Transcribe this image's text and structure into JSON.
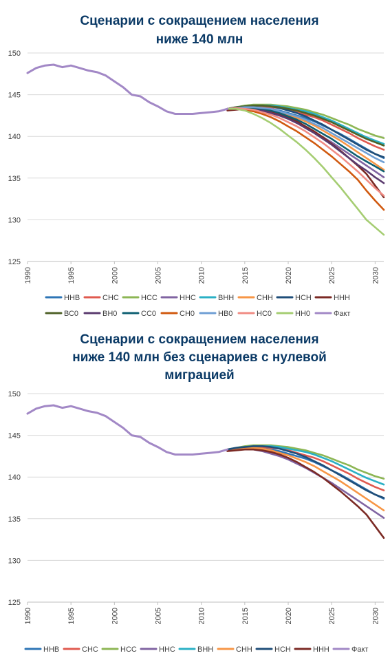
{
  "charts": [
    {
      "title_lines": [
        "Сценарии с сокращением населения",
        "ниже 140 млн"
      ],
      "type": "line",
      "xlim": [
        1990,
        2031
      ],
      "ylim": [
        125,
        150
      ],
      "y_ticks": [
        125,
        130,
        135,
        140,
        145,
        150
      ],
      "x_ticks": [
        1990,
        1995,
        2000,
        2005,
        2010,
        2015,
        2020,
        2025,
        2030
      ],
      "grid": "horizontal",
      "legend_position": "bottom",
      "series": [
        {
          "name": "ННВ",
          "color": "#2e75b6",
          "end": 137.4
        },
        {
          "name": "СНС",
          "color": "#e05a4f",
          "end": 138.4
        },
        {
          "name": "НСС",
          "color": "#8db654",
          "end": 139.8
        },
        {
          "name": "ННС",
          "color": "#8064a2",
          "end": 135.1
        },
        {
          "name": "ВНН",
          "color": "#2ab0c5",
          "end": 139.1
        },
        {
          "name": "СНН",
          "color": "#f79646",
          "end": 136.0
        },
        {
          "name": "НСН",
          "color": "#1f4e79",
          "end": 137.5
        },
        {
          "name": "ННН",
          "color": "#7b2a24",
          "end": 132.7
        },
        {
          "name": "ВС0",
          "color": "#4f6228",
          "end": 138.9
        },
        {
          "name": "ВН0",
          "color": "#5a3a6e",
          "end": 134.4
        },
        {
          "name": "СС0",
          "color": "#0e5f72",
          "end": 135.8
        },
        {
          "name": "СН0",
          "color": "#d0590f",
          "end": 131.2
        },
        {
          "name": "НВ0",
          "color": "#6f9fd4",
          "end": 136.9
        },
        {
          "name": "НС0",
          "color": "#f08c84",
          "end": 132.9
        },
        {
          "name": "НН0",
          "color": "#a5cd72",
          "end": 128.2
        },
        {
          "name": "Факт",
          "color": "#a288c6"
        }
      ]
    },
    {
      "title_lines": [
        "Сценарии с сокращением населения",
        "ниже 140 млн без сценариев с нулевой",
        "миграцией"
      ],
      "type": "line",
      "xlim": [
        1990,
        2031
      ],
      "ylim": [
        125,
        150
      ],
      "y_ticks": [
        125,
        130,
        135,
        140,
        145,
        150
      ],
      "x_ticks": [
        1990,
        1995,
        2000,
        2005,
        2010,
        2015,
        2020,
        2025,
        2030
      ],
      "grid": "horizontal",
      "legend_position": "bottom",
      "series": [
        {
          "name": "ННВ",
          "color": "#2e75b6",
          "end": 137.4
        },
        {
          "name": "СНС",
          "color": "#e05a4f",
          "end": 138.4
        },
        {
          "name": "НСС",
          "color": "#8db654",
          "end": 139.8
        },
        {
          "name": "ННС",
          "color": "#8064a2",
          "end": 135.1
        },
        {
          "name": "ВНН",
          "color": "#2ab0c5",
          "end": 139.1
        },
        {
          "name": "СНН",
          "color": "#f79646",
          "end": 136.0
        },
        {
          "name": "НСН",
          "color": "#1f4e79",
          "end": 137.5
        },
        {
          "name": "ННН",
          "color": "#7b2a24",
          "end": 132.7
        },
        {
          "name": "Факт",
          "color": "#a288c6"
        }
      ]
    }
  ],
  "chart_data": [
    {
      "type": "line",
      "title": "Сценарии с сокращением населения ниже 140 млн",
      "xlim": [
        1990,
        2031
      ],
      "ylim": [
        125,
        150
      ],
      "fact_series": {
        "name": "Факт",
        "x": [
          1990,
          1991,
          1992,
          1993,
          1994,
          1995,
          1996,
          1997,
          1998,
          1999,
          2000,
          2001,
          2002,
          2003,
          2004,
          2005,
          2006,
          2007,
          2008,
          2009,
          2010,
          2011,
          2012,
          2013
        ],
        "y": [
          147.6,
          148.2,
          148.5,
          148.6,
          148.3,
          148.5,
          148.2,
          147.9,
          147.7,
          147.3,
          146.6,
          145.9,
          145.0,
          144.8,
          144.1,
          143.6,
          143.0,
          142.7,
          142.7,
          142.7,
          142.8,
          142.9,
          143.0,
          143.3
        ]
      },
      "scenario_x": [
        2013,
        2014,
        2015,
        2016,
        2017,
        2018,
        2019,
        2020,
        2021,
        2022,
        2023,
        2024,
        2025,
        2026,
        2027,
        2028,
        2029,
        2030,
        2031
      ],
      "scenarios": [
        {
          "name": "ННВ",
          "y": [
            143.3,
            143.4,
            143.5,
            143.5,
            143.4,
            143.3,
            143.1,
            142.8,
            142.5,
            142.2,
            141.8,
            141.3,
            140.8,
            140.3,
            139.7,
            139.1,
            138.5,
            137.9,
            137.4
          ]
        },
        {
          "name": "СНС",
          "y": [
            143.3,
            143.5,
            143.6,
            143.6,
            143.6,
            143.5,
            143.4,
            143.2,
            142.9,
            142.6,
            142.3,
            141.9,
            141.4,
            140.9,
            140.4,
            139.8,
            139.3,
            138.8,
            138.4
          ]
        },
        {
          "name": "НСС",
          "y": [
            143.3,
            143.5,
            143.7,
            143.8,
            143.8,
            143.8,
            143.7,
            143.6,
            143.4,
            143.2,
            142.9,
            142.6,
            142.2,
            141.8,
            141.4,
            140.9,
            140.5,
            140.1,
            139.8
          ]
        },
        {
          "name": "ННС",
          "y": [
            143.3,
            143.4,
            143.4,
            143.3,
            143.1,
            142.8,
            142.5,
            142.1,
            141.6,
            141.1,
            140.5,
            139.9,
            139.3,
            138.6,
            137.9,
            137.2,
            136.5,
            135.8,
            135.1
          ]
        },
        {
          "name": "ВНН",
          "y": [
            143.3,
            143.5,
            143.6,
            143.7,
            143.7,
            143.7,
            143.6,
            143.4,
            143.2,
            143.0,
            142.7,
            142.3,
            141.9,
            141.4,
            140.9,
            140.4,
            139.9,
            139.5,
            139.1
          ]
        },
        {
          "name": "СНН",
          "y": [
            143.3,
            143.4,
            143.5,
            143.5,
            143.4,
            143.2,
            142.9,
            142.6,
            142.2,
            141.8,
            141.3,
            140.7,
            140.1,
            139.5,
            138.8,
            138.1,
            137.4,
            136.7,
            136.0
          ]
        },
        {
          "name": "НСН",
          "y": [
            143.3,
            143.5,
            143.6,
            143.7,
            143.7,
            143.6,
            143.4,
            143.1,
            142.8,
            142.4,
            141.9,
            141.4,
            140.8,
            140.2,
            139.6,
            139.0,
            138.4,
            137.9,
            137.5
          ]
        },
        {
          "name": "ННН",
          "y": [
            143.1,
            143.2,
            143.3,
            143.3,
            143.2,
            143.0,
            142.7,
            142.3,
            141.8,
            141.2,
            140.6,
            139.9,
            139.1,
            138.3,
            137.4,
            136.5,
            135.5,
            134.1,
            132.7
          ]
        },
        {
          "name": "ВС0",
          "y": [
            143.3,
            143.5,
            143.6,
            143.7,
            143.7,
            143.6,
            143.5,
            143.3,
            143.1,
            142.8,
            142.5,
            142.1,
            141.7,
            141.2,
            140.7,
            140.2,
            139.7,
            139.3,
            138.9
          ]
        },
        {
          "name": "ВН0",
          "y": [
            143.3,
            143.4,
            143.4,
            143.3,
            143.1,
            142.8,
            142.5,
            142.1,
            141.6,
            141.0,
            140.4,
            139.7,
            139.0,
            138.2,
            137.4,
            136.6,
            135.9,
            135.1,
            134.4
          ]
        },
        {
          "name": "СС0",
          "y": [
            143.3,
            143.4,
            143.5,
            143.4,
            143.3,
            143.1,
            142.8,
            142.4,
            142.0,
            141.5,
            140.9,
            140.3,
            139.7,
            139.0,
            138.3,
            137.6,
            137.0,
            136.4,
            135.8
          ]
        },
        {
          "name": "СН0",
          "y": [
            143.3,
            143.3,
            143.2,
            143.0,
            142.7,
            142.3,
            141.8,
            141.2,
            140.6,
            139.9,
            139.2,
            138.4,
            137.6,
            136.7,
            135.8,
            134.8,
            133.5,
            132.3,
            131.2
          ]
        },
        {
          "name": "НВ0",
          "y": [
            143.3,
            143.4,
            143.5,
            143.5,
            143.4,
            143.3,
            143.0,
            142.7,
            142.4,
            142.0,
            141.5,
            141.0,
            140.4,
            139.8,
            139.2,
            138.6,
            138.0,
            137.4,
            136.9
          ]
        },
        {
          "name": "НС0",
          "y": [
            143.3,
            143.4,
            143.3,
            143.2,
            142.9,
            142.6,
            142.2,
            141.7,
            141.2,
            140.6,
            139.9,
            139.2,
            138.4,
            137.6,
            136.7,
            135.8,
            134.8,
            133.8,
            132.9
          ]
        },
        {
          "name": "НН0",
          "y": [
            143.3,
            143.3,
            143.1,
            142.7,
            142.2,
            141.6,
            140.9,
            140.1,
            139.3,
            138.4,
            137.4,
            136.3,
            135.1,
            133.9,
            132.6,
            131.3,
            130.0,
            129.1,
            128.2
          ]
        }
      ]
    },
    {
      "type": "line",
      "title": "Сценарии с сокращением населения ниже 140 млн без сценариев с нулевой миграцией",
      "xlim": [
        1990,
        2031
      ],
      "ylim": [
        125,
        150
      ],
      "fact_series": {
        "name": "Факт",
        "x": [
          1990,
          1991,
          1992,
          1993,
          1994,
          1995,
          1996,
          1997,
          1998,
          1999,
          2000,
          2001,
          2002,
          2003,
          2004,
          2005,
          2006,
          2007,
          2008,
          2009,
          2010,
          2011,
          2012,
          2013
        ],
        "y": [
          147.6,
          148.2,
          148.5,
          148.6,
          148.3,
          148.5,
          148.2,
          147.9,
          147.7,
          147.3,
          146.6,
          145.9,
          145.0,
          144.8,
          144.1,
          143.6,
          143.0,
          142.7,
          142.7,
          142.7,
          142.8,
          142.9,
          143.0,
          143.3
        ]
      },
      "scenario_x": [
        2013,
        2014,
        2015,
        2016,
        2017,
        2018,
        2019,
        2020,
        2021,
        2022,
        2023,
        2024,
        2025,
        2026,
        2027,
        2028,
        2029,
        2030,
        2031
      ],
      "scenarios": [
        {
          "name": "ННВ",
          "y": [
            143.3,
            143.4,
            143.5,
            143.5,
            143.4,
            143.3,
            143.1,
            142.8,
            142.5,
            142.2,
            141.8,
            141.3,
            140.8,
            140.3,
            139.7,
            139.1,
            138.5,
            137.9,
            137.4
          ]
        },
        {
          "name": "СНС",
          "y": [
            143.3,
            143.5,
            143.6,
            143.6,
            143.6,
            143.5,
            143.4,
            143.2,
            142.9,
            142.6,
            142.3,
            141.9,
            141.4,
            140.9,
            140.4,
            139.8,
            139.3,
            138.8,
            138.4
          ]
        },
        {
          "name": "НСС",
          "y": [
            143.3,
            143.5,
            143.7,
            143.8,
            143.8,
            143.8,
            143.7,
            143.6,
            143.4,
            143.2,
            142.9,
            142.6,
            142.2,
            141.8,
            141.4,
            140.9,
            140.5,
            140.1,
            139.8
          ]
        },
        {
          "name": "ННС",
          "y": [
            143.3,
            143.4,
            143.4,
            143.3,
            143.1,
            142.8,
            142.5,
            142.1,
            141.6,
            141.1,
            140.5,
            139.9,
            139.3,
            138.6,
            137.9,
            137.2,
            136.5,
            135.8,
            135.1
          ]
        },
        {
          "name": "ВНН",
          "y": [
            143.3,
            143.5,
            143.6,
            143.7,
            143.7,
            143.7,
            143.6,
            143.4,
            143.2,
            143.0,
            142.7,
            142.3,
            141.9,
            141.4,
            140.9,
            140.4,
            139.9,
            139.5,
            139.1
          ]
        },
        {
          "name": "СНН",
          "y": [
            143.3,
            143.4,
            143.5,
            143.5,
            143.4,
            143.2,
            142.9,
            142.6,
            142.2,
            141.8,
            141.3,
            140.7,
            140.1,
            139.5,
            138.8,
            138.1,
            137.4,
            136.7,
            136.0
          ]
        },
        {
          "name": "НСН",
          "y": [
            143.3,
            143.5,
            143.6,
            143.7,
            143.7,
            143.6,
            143.4,
            143.1,
            142.8,
            142.4,
            141.9,
            141.4,
            140.8,
            140.2,
            139.6,
            139.0,
            138.4,
            137.9,
            137.5
          ]
        },
        {
          "name": "ННН",
          "y": [
            143.1,
            143.2,
            143.3,
            143.3,
            143.2,
            143.0,
            142.7,
            142.3,
            141.8,
            141.2,
            140.6,
            139.9,
            139.1,
            138.3,
            137.4,
            136.5,
            135.5,
            134.1,
            132.7
          ]
        }
      ]
    }
  ]
}
